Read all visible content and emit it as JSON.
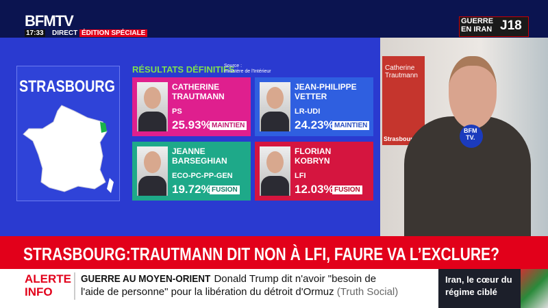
{
  "header": {
    "logo": "BFMTV",
    "time": "17:33",
    "live": "DIRECT",
    "edition": "ÉDITION SPÉCIALE",
    "topic_1": "GUERRE",
    "topic_2": "EN IRAN",
    "day": "J18"
  },
  "panel": {
    "city": "STRASBOURG",
    "title": "RÉSULTATS DÉFINITIFS",
    "source_1": "Source :",
    "source_2": "ministère de l'Intérieur"
  },
  "candidates": [
    {
      "first": "CATHERINE",
      "last": "TRAUTMANN",
      "party": "PS",
      "score": "25.93%",
      "status": "MAINTIEN"
    },
    {
      "first": "JEAN-PHILIPPE",
      "last": "VETTER",
      "party": "LR-UDI",
      "score": "24.23%",
      "status": "MAINTIEN"
    },
    {
      "first": "JEANNE",
      "last": "BARSEGHIAN",
      "party": "ECO-PC-PP-GEN",
      "score": "19.72%",
      "status": "FUSION"
    },
    {
      "first": "FLORIAN",
      "last": "KOBRYN",
      "party": "LFI",
      "score": "12.03%",
      "status": "FUSION"
    }
  ],
  "scene": {
    "mic_1": "BFM",
    "mic_2": "TV.",
    "poster": "Catherine Trautmann",
    "poster_city": "Strasbourg"
  },
  "headline": "STRASBOURG:TRAUTMANN DIT NON À LFI, FAURE VA L’EXCLURE?",
  "ticker": {
    "alert_1": "ALERTE",
    "alert_2": "INFO",
    "rubric": "GUERRE AU MOYEN-ORIENT",
    "text_1": "Donald Trump dit n'avoir \"besoin de",
    "text_2": "l'aide de personne\" pour la libération du détroit d'Ormuz",
    "source": "(Truth Social)"
  },
  "teaser_1": "Iran, le cœur du",
  "teaser_2": "régime ciblé"
}
